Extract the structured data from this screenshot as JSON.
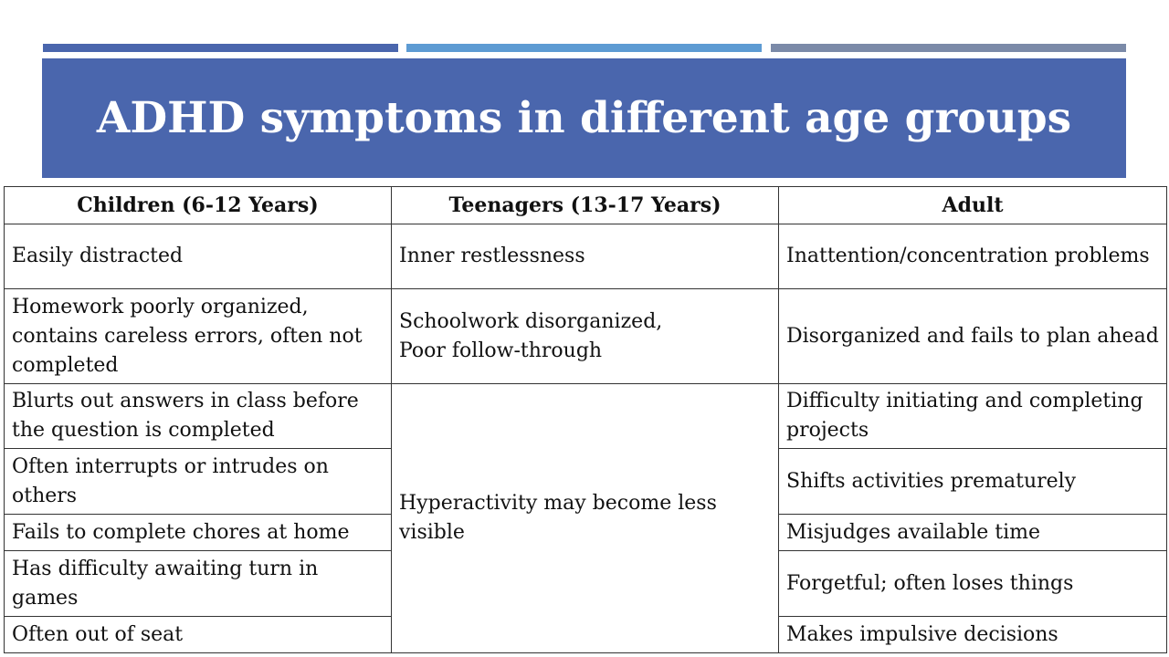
{
  "slide": {
    "title": "ADHD symptoms in different age groups",
    "colors": {
      "title_band": "#4a66ad",
      "accent_1": "#4a66ad",
      "accent_2": "#5d9bd3",
      "accent_3": "#7b8aa8"
    }
  },
  "table": {
    "headers": [
      "Children (6-12 Years)",
      "Teenagers (13-17 Years)",
      "Adult"
    ],
    "children": [
      "Easily distracted",
      "Homework poorly organized, contains careless errors, often not completed",
      "Blurts out answers in class before the question is completed",
      "Often interrupts or intrudes on others",
      "Fails to complete chores at home",
      "Has difficulty awaiting turn in games",
      "Often out of seat"
    ],
    "teenagers": [
      "Inner restlessness",
      "Schoolwork disorganized,",
      "Poor follow-through",
      "Hyperactivity may become less visible"
    ],
    "adult": [
      "Inattention/concentration problems",
      "Disorganized and fails to plan ahead",
      "Difficulty initiating and completing projects",
      "Shifts activities prematurely",
      "Misjudges available time",
      "Forgetful; often loses things",
      "Makes impulsive decisions"
    ]
  }
}
